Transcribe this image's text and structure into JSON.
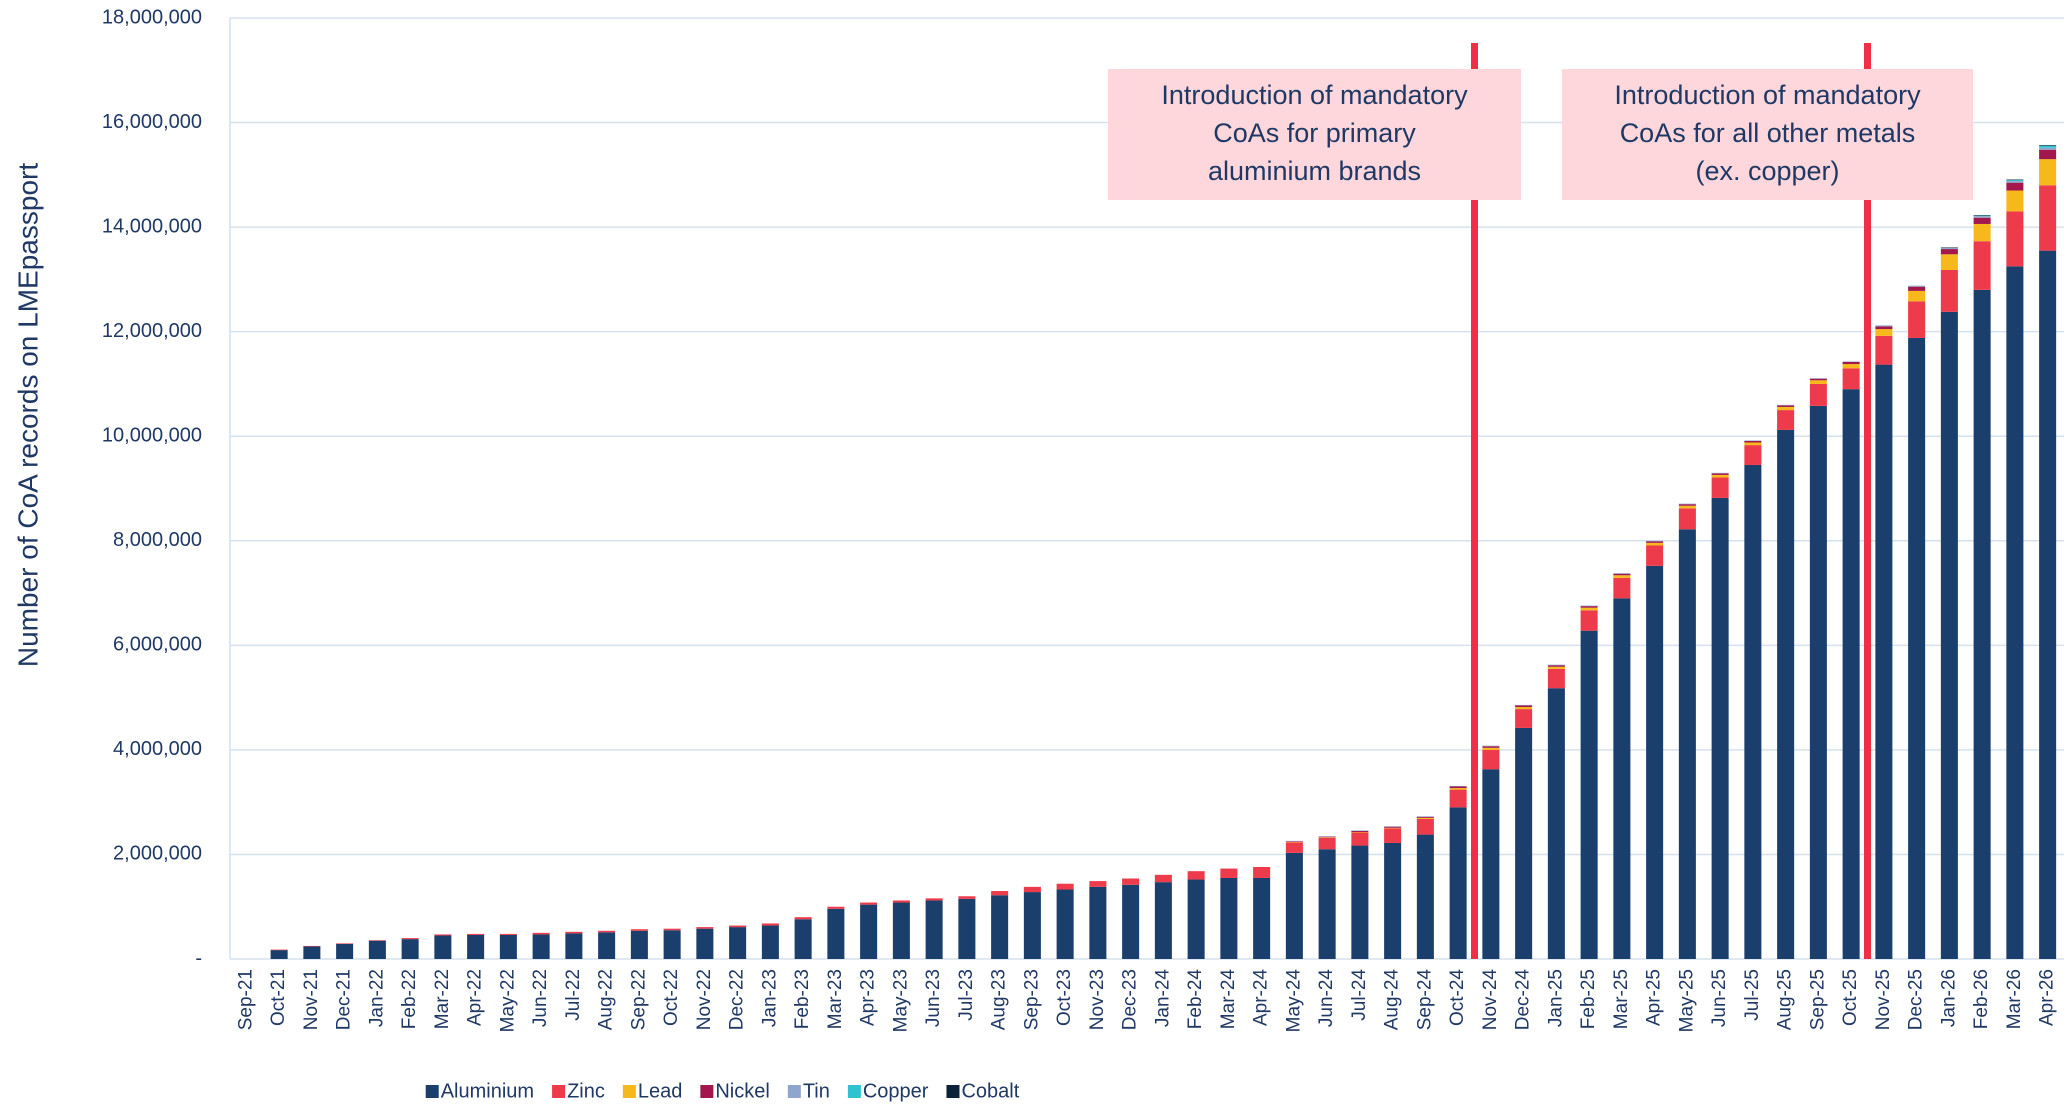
{
  "chart_data": {
    "type": "bar",
    "stacked": true,
    "grid": true,
    "y_label": "Number of CoA records on LMEpassport",
    "categories": [
      "Sep-21",
      "Oct-21",
      "Nov-21",
      "Dec-21",
      "Jan-22",
      "Feb-22",
      "Mar-22",
      "Apr-22",
      "May-22",
      "Jun-22",
      "Jul-22",
      "Aug-22",
      "Sep-22",
      "Oct-22",
      "Nov-22",
      "Dec-22",
      "Jan-23",
      "Feb-23",
      "Mar-23",
      "Apr-23",
      "May-23",
      "Jun-23",
      "Jul-23",
      "Aug-23",
      "Sep-23",
      "Oct-23",
      "Nov-23",
      "Dec-23",
      "Jan-24",
      "Feb-24",
      "Mar-24",
      "Apr-24",
      "May-24",
      "Jun-24",
      "Jul-24",
      "Aug-24",
      "Sep-24",
      "Oct-24",
      "Nov-24",
      "Dec-24",
      "Jan-25",
      "Feb-25",
      "Mar-25",
      "Apr-25",
      "May-25",
      "Jun-25",
      "Jul-25",
      "Aug-25",
      "Sep-25",
      "Oct-25",
      "Nov-25",
      "Dec-25",
      "Jan-26",
      "Feb-26",
      "Mar-26",
      "Apr-26"
    ],
    "series": [
      {
        "name": "Aluminium",
        "color": "#1b3f6c",
        "values": [
          0,
          170000,
          240000,
          290000,
          350000,
          380000,
          450000,
          460000,
          460000,
          470000,
          490000,
          510000,
          540000,
          550000,
          580000,
          610000,
          640000,
          760000,
          960000,
          1040000,
          1080000,
          1120000,
          1150000,
          1220000,
          1280000,
          1330000,
          1380000,
          1420000,
          1470000,
          1520000,
          1550000,
          1550000,
          2030000,
          2100000,
          2170000,
          2220000,
          2380000,
          2900000,
          3630000,
          4420000,
          5180000,
          6280000,
          6900000,
          7520000,
          8220000,
          8820000,
          9450000,
          10120000,
          10580000,
          10900000,
          11370000,
          11880000,
          12380000,
          12800000,
          13250000,
          13550000
        ]
      },
      {
        "name": "Zinc",
        "color": "#ee3b4b",
        "values": [
          0,
          10000,
          10000,
          10000,
          10000,
          20000,
          20000,
          20000,
          20000,
          30000,
          30000,
          30000,
          30000,
          30000,
          30000,
          30000,
          40000,
          40000,
          40000,
          40000,
          40000,
          40000,
          50000,
          80000,
          100000,
          110000,
          110000,
          120000,
          140000,
          160000,
          180000,
          210000,
          200000,
          220000,
          250000,
          280000,
          300000,
          340000,
          370000,
          360000,
          370000,
          390000,
          390000,
          390000,
          400000,
          390000,
          380000,
          380000,
          420000,
          400000,
          550000,
          700000,
          800000,
          930000,
          1050000,
          1250000
        ]
      },
      {
        "name": "Lead",
        "color": "#f6b81a",
        "values": [
          0,
          0,
          0,
          0,
          0,
          0,
          0,
          0,
          0,
          0,
          0,
          0,
          0,
          0,
          0,
          0,
          0,
          0,
          0,
          0,
          0,
          0,
          0,
          0,
          0,
          0,
          0,
          0,
          0,
          0,
          0,
          0,
          10000,
          10000,
          10000,
          10000,
          20000,
          30000,
          40000,
          40000,
          40000,
          50000,
          50000,
          50000,
          50000,
          50000,
          50000,
          60000,
          70000,
          80000,
          130000,
          200000,
          300000,
          330000,
          400000,
          500000
        ]
      },
      {
        "name": "Nickel",
        "color": "#a3174c",
        "values": [
          0,
          0,
          0,
          0,
          0,
          0,
          0,
          0,
          0,
          0,
          0,
          0,
          0,
          0,
          0,
          0,
          0,
          0,
          0,
          0,
          0,
          0,
          0,
          0,
          0,
          0,
          0,
          0,
          0,
          0,
          0,
          0,
          10000,
          10000,
          20000,
          20000,
          20000,
          30000,
          30000,
          30000,
          30000,
          30000,
          30000,
          30000,
          30000,
          30000,
          30000,
          30000,
          30000,
          40000,
          50000,
          80000,
          100000,
          120000,
          150000,
          180000
        ]
      },
      {
        "name": "Tin",
        "color": "#8ea6cb",
        "values": [
          0,
          0,
          0,
          0,
          0,
          0,
          0,
          0,
          0,
          0,
          0,
          0,
          0,
          0,
          0,
          0,
          0,
          0,
          0,
          0,
          0,
          0,
          0,
          0,
          0,
          0,
          0,
          0,
          0,
          0,
          0,
          0,
          10000,
          10000,
          10000,
          10000,
          10000,
          10000,
          10000,
          10000,
          10000,
          10000,
          10000,
          10000,
          10000,
          10000,
          10000,
          10000,
          10000,
          10000,
          20000,
          20000,
          20000,
          30000,
          30000,
          40000
        ]
      },
      {
        "name": "Copper",
        "color": "#2fc3d0",
        "values": [
          0,
          0,
          0,
          0,
          0,
          0,
          0,
          0,
          0,
          0,
          0,
          0,
          0,
          0,
          0,
          0,
          0,
          0,
          0,
          0,
          0,
          0,
          0,
          0,
          0,
          0,
          0,
          0,
          0,
          0,
          0,
          0,
          0,
          0,
          0,
          0,
          0,
          0,
          0,
          0,
          0,
          0,
          0,
          0,
          0,
          0,
          0,
          0,
          0,
          0,
          0,
          0,
          0,
          10000,
          20000,
          40000
        ]
      },
      {
        "name": "Cobalt",
        "color": "#0c2238",
        "values": [
          0,
          0,
          0,
          0,
          0,
          0,
          0,
          0,
          0,
          0,
          0,
          0,
          0,
          0,
          0,
          0,
          0,
          0,
          0,
          0,
          0,
          0,
          0,
          0,
          0,
          0,
          0,
          0,
          0,
          0,
          0,
          0,
          0,
          0,
          0,
          0,
          0,
          0,
          0,
          0,
          0,
          0,
          0,
          0,
          0,
          0,
          0,
          0,
          0,
          0,
          0,
          0,
          10000,
          10000,
          10000,
          10000
        ]
      }
    ],
    "ylim": [
      0,
      18000000
    ],
    "yticks": [
      {
        "value": 0,
        "label": "-"
      },
      {
        "value": 2000000,
        "label": "2,000,000"
      },
      {
        "value": 4000000,
        "label": "4,000,000"
      },
      {
        "value": 6000000,
        "label": "6,000,000"
      },
      {
        "value": 8000000,
        "label": "8,000,000"
      },
      {
        "value": 10000000,
        "label": "10,000,000"
      },
      {
        "value": 12000000,
        "label": "12,000,000"
      },
      {
        "value": 14000000,
        "label": "14,000,000"
      },
      {
        "value": 16000000,
        "label": "16,000,000"
      },
      {
        "value": 18000000,
        "label": "18,000,000"
      }
    ],
    "annotations": [
      {
        "lines": [
          "Introduction of mandatory",
          "CoAs for primary",
          "aluminium brands"
        ]
      },
      {
        "lines": [
          "Introduction of mandatory",
          "CoAs for all other metals",
          "(ex. copper)"
        ]
      }
    ],
    "legend": "bottom"
  }
}
